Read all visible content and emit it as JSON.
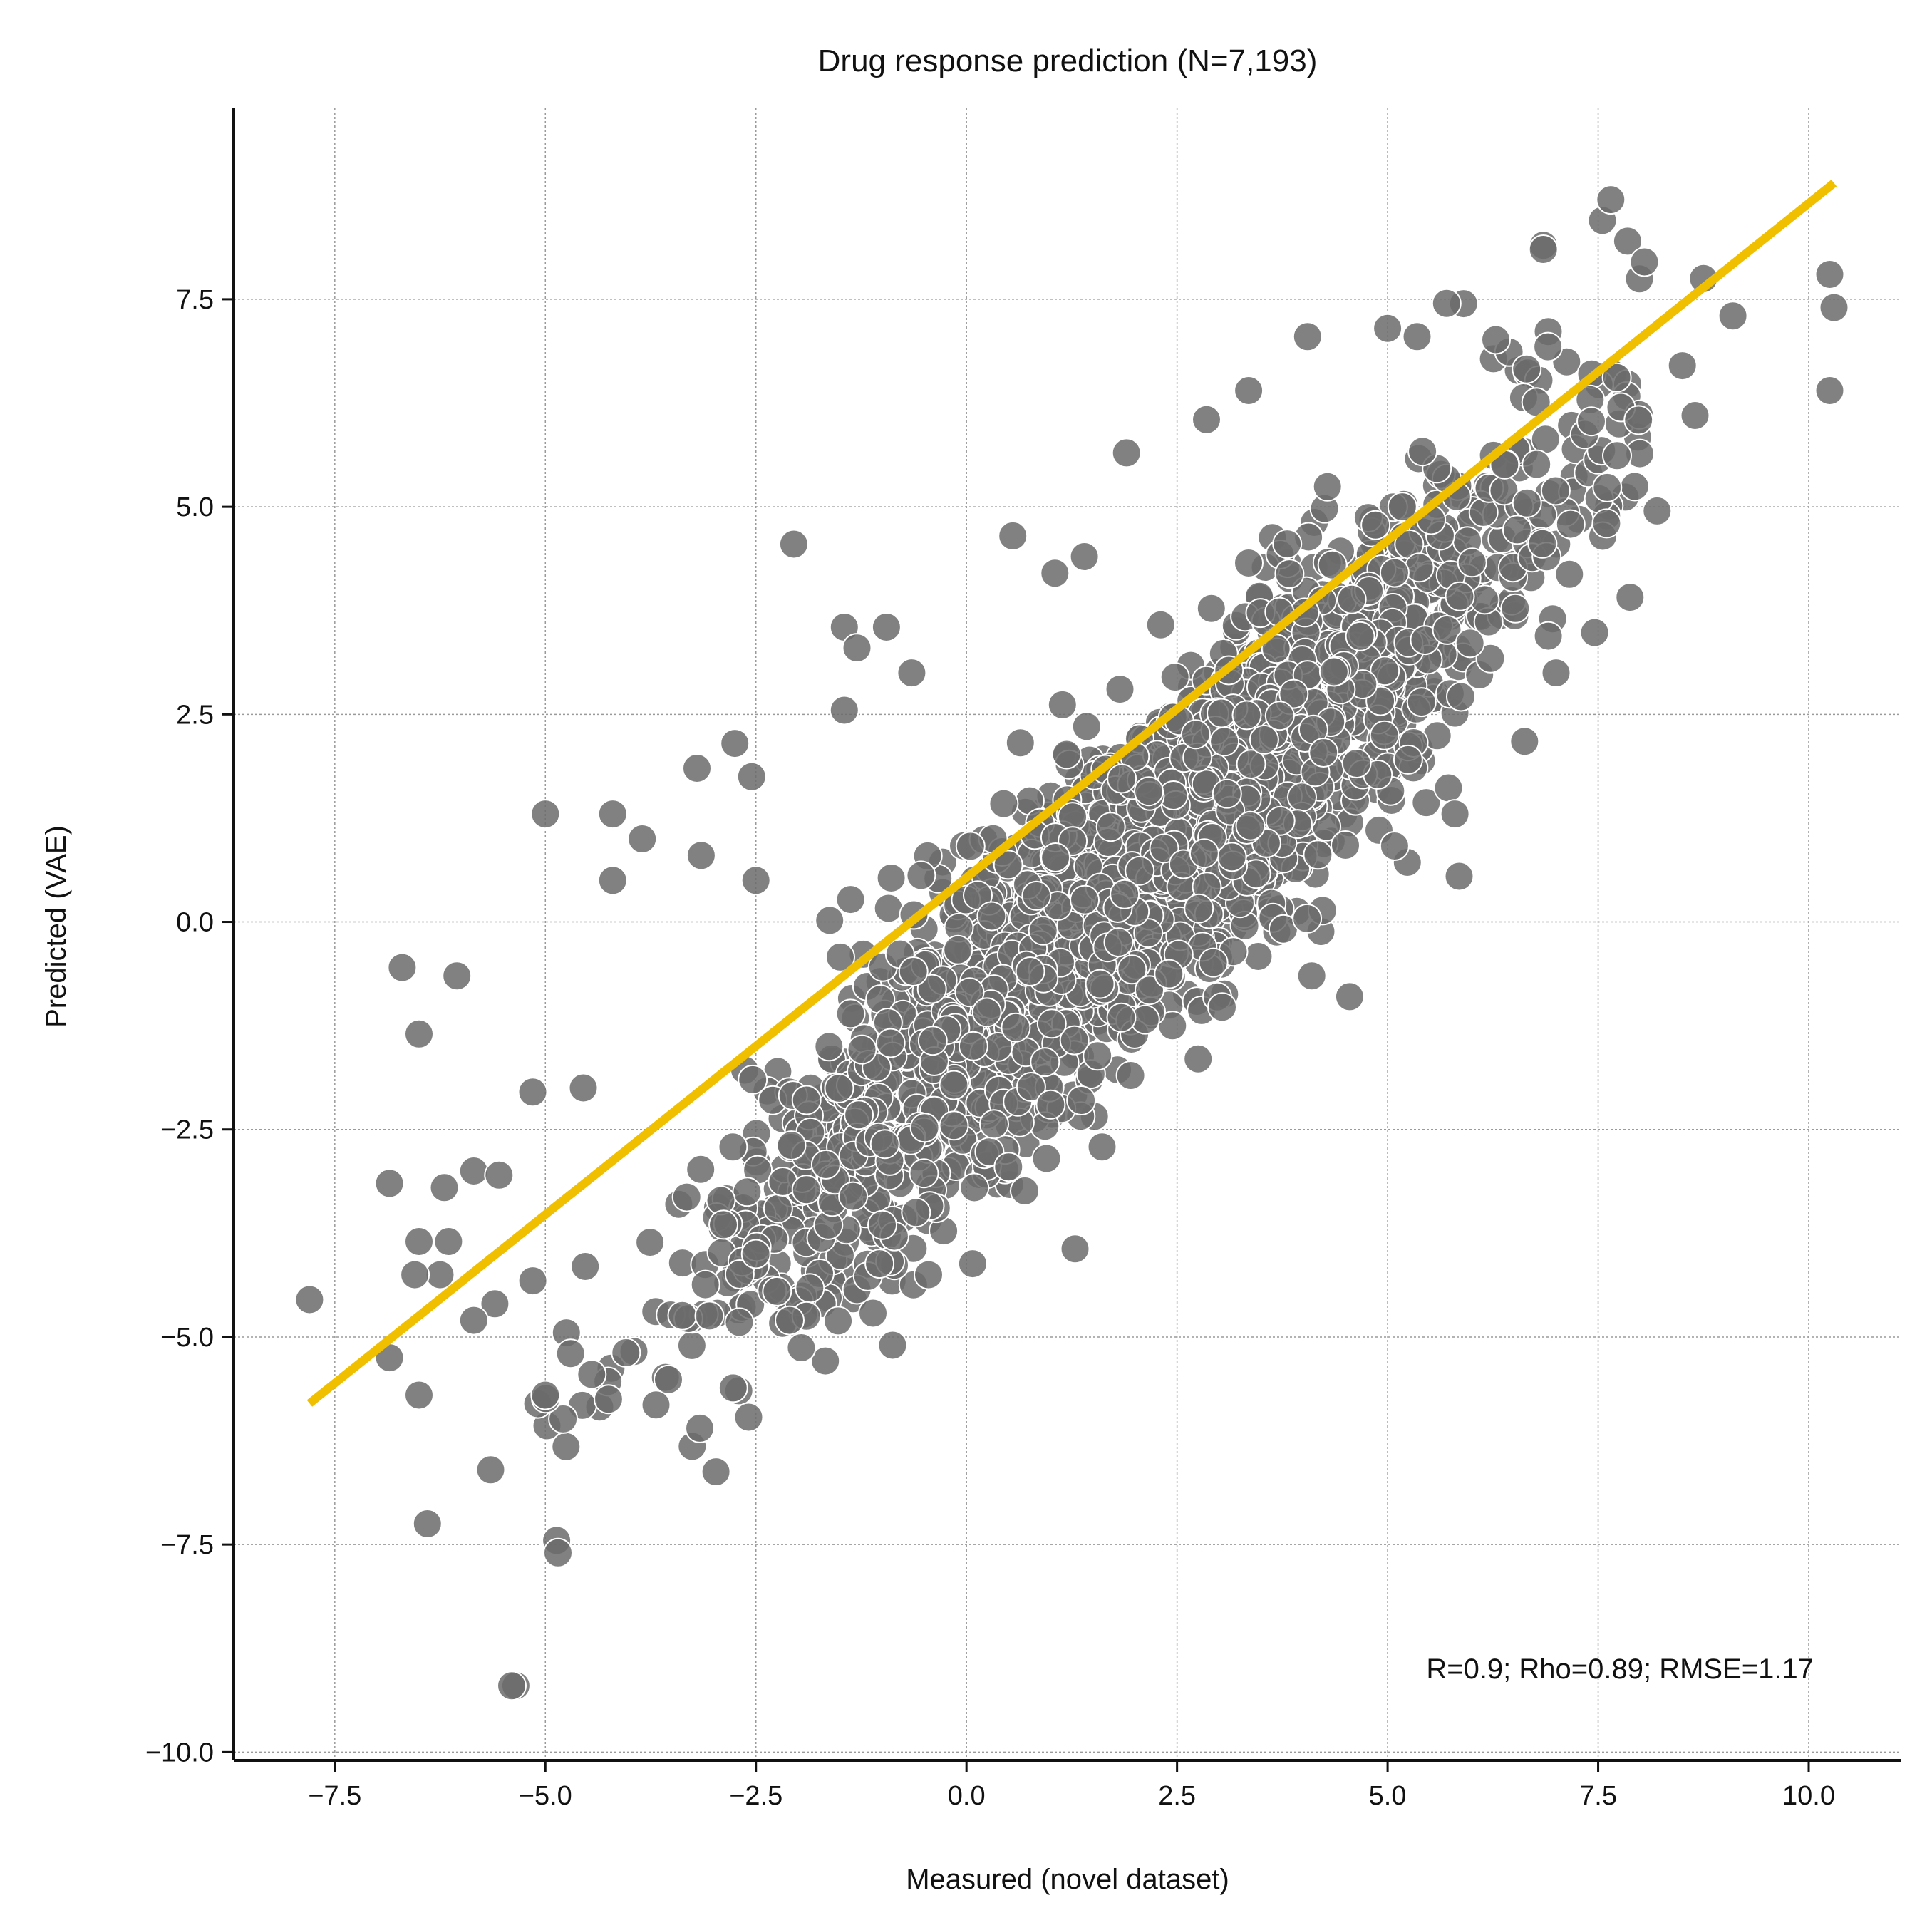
{
  "chart_data": {
    "type": "scatter",
    "title": "Drug response prediction (N=7,193)",
    "xlabel": "Measured (novel dataset)",
    "ylabel": "Predicted (VAE)",
    "xlim": [
      -8.7,
      11.1
    ],
    "ylim": [
      -10.1,
      9.8
    ],
    "xticks": [
      -7.5,
      -5.0,
      -2.5,
      0.0,
      2.5,
      5.0,
      7.5,
      10.0
    ],
    "xtick_labels": [
      "−7.5",
      "−5.0",
      "−2.5",
      "0.0",
      "2.5",
      "5.0",
      "7.5",
      "10.0"
    ],
    "yticks": [
      -10.0,
      -7.5,
      -5.0,
      -2.5,
      0.0,
      2.5,
      5.0,
      7.5
    ],
    "ytick_labels": [
      "−10.0",
      "−7.5",
      "−5.0",
      "−2.5",
      "0.0",
      "2.5",
      "5.0",
      "7.5"
    ],
    "grid": true,
    "annotation": "R=0.9; Rho=0.89; RMSE=1.17",
    "n_points": 7193,
    "point_color": "#6b6b6b",
    "point_edge_color": "#ffffff",
    "fit_line": {
      "color": "#f0c000",
      "x": [
        -7.8,
        10.3
      ],
      "y": [
        -5.8,
        8.9
      ]
    },
    "outliers": [
      [
        -7.8,
        -4.55
      ],
      [
        -6.7,
        -0.55
      ],
      [
        -6.5,
        -1.35
      ],
      [
        -6.05,
        -0.65
      ],
      [
        -6.85,
        -3.15
      ],
      [
        -6.85,
        -5.25
      ],
      [
        -6.5,
        -5.7
      ],
      [
        -6.4,
        -7.25
      ],
      [
        -5.65,
        -6.6
      ],
      [
        -5.35,
        -9.2
      ],
      [
        -5.4,
        -9.2
      ],
      [
        -4.85,
        -7.6
      ],
      [
        -5.0,
        -5.7
      ],
      [
        -5.0,
        1.3
      ],
      [
        -4.2,
        1.3
      ],
      [
        -4.2,
        0.5
      ],
      [
        -3.85,
        1.0
      ],
      [
        -2.75,
        2.15
      ],
      [
        -2.55,
        1.75
      ],
      [
        -3.2,
        1.85
      ],
      [
        -2.05,
        4.55
      ],
      [
        -1.45,
        3.55
      ],
      [
        -0.95,
        3.55
      ],
      [
        -1.3,
        3.3
      ],
      [
        -1.45,
        2.55
      ],
      [
        -0.65,
        3.0
      ],
      [
        1.05,
        4.2
      ],
      [
        1.4,
        4.4
      ],
      [
        0.55,
        4.65
      ],
      [
        1.9,
        5.65
      ],
      [
        2.85,
        6.05
      ],
      [
        3.35,
        6.4
      ],
      [
        4.05,
        7.05
      ],
      [
        5.0,
        7.15
      ],
      [
        5.35,
        7.05
      ],
      [
        5.7,
        7.45
      ],
      [
        6.85,
        8.15
      ],
      [
        6.85,
        8.1
      ],
      [
        7.55,
        8.45
      ],
      [
        7.65,
        8.7
      ],
      [
        7.85,
        8.2
      ],
      [
        8.05,
        7.95
      ],
      [
        8.75,
        7.75
      ],
      [
        9.1,
        7.3
      ],
      [
        10.25,
        7.8
      ],
      [
        10.3,
        7.4
      ],
      [
        10.25,
        6.4
      ],
      [
        8.5,
        6.7
      ],
      [
        8.65,
        6.1
      ],
      [
        8.2,
        4.95
      ],
      [
        7.6,
        4.8
      ],
      [
        7.0,
        3.0
      ],
      [
        5.85,
        0.55
      ],
      [
        5.8,
        1.3
      ],
      [
        4.55,
        -0.9
      ],
      [
        4.1,
        -0.65
      ],
      [
        2.75,
        -1.65
      ],
      [
        1.95,
        -1.85
      ],
      [
        1.0,
        -2.2
      ],
      [
        0.95,
        -2.85
      ],
      [
        -0.45,
        -4.25
      ],
      [
        -0.6,
        -3.5
      ],
      [
        -1.0,
        -3.65
      ],
      [
        -1.9,
        -4.75
      ],
      [
        -2.1,
        -4.8
      ],
      [
        -2.25,
        -4.45
      ],
      [
        -2.5,
        -4.0
      ],
      [
        -4.25,
        -5.75
      ],
      [
        -4.45,
        -5.45
      ],
      [
        -5.6,
        -4.6
      ],
      [
        -6.25,
        -4.25
      ],
      [
        -5.85,
        -4.8
      ],
      [
        -6.15,
        -3.85
      ],
      [
        -6.2,
        -3.2
      ],
      [
        -5.85,
        -3.0
      ],
      [
        -5.55,
        -3.05
      ],
      [
        -5.15,
        -2.05
      ],
      [
        -6.5,
        -3.85
      ],
      [
        -6.55,
        -4.25
      ],
      [
        -4.55,
        -2.0
      ],
      [
        -4.75,
        -4.95
      ],
      [
        -4.7,
        -5.2
      ],
      [
        -3.15,
        0.8
      ],
      [
        -2.5,
        0.5
      ],
      [
        0.5,
        -2.95
      ]
    ]
  }
}
